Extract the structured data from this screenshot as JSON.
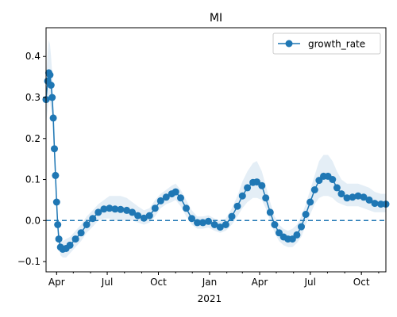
{
  "chart_data": {
    "type": "line",
    "title": "MI",
    "xlabel": "",
    "ylabel": "",
    "x_start": "2020-03-13",
    "x_end": "2021-11-14",
    "ylim": [
      -0.125,
      0.47
    ],
    "x_ticks": [
      {
        "date": "2020-04-01",
        "label": "Apr",
        "sub": ""
      },
      {
        "date": "2020-07-01",
        "label": "Jul",
        "sub": ""
      },
      {
        "date": "2020-10-01",
        "label": "Oct",
        "sub": ""
      },
      {
        "date": "2021-01-01",
        "label": "Jan",
        "sub": "2021"
      },
      {
        "date": "2021-04-01",
        "label": "Apr",
        "sub": ""
      },
      {
        "date": "2021-07-01",
        "label": "Jul",
        "sub": ""
      },
      {
        "date": "2021-10-01",
        "label": "Oct",
        "sub": ""
      }
    ],
    "y_ticks": [
      -0.1,
      0.0,
      0.1,
      0.2,
      0.3,
      0.4
    ],
    "y_tick_labels": [
      "−0.1",
      "0.0",
      "0.1",
      "0.2",
      "0.3",
      "0.4"
    ],
    "reference_line": {
      "y": 0.0,
      "style": "dashed"
    },
    "legend": {
      "position": "top-right"
    },
    "series": [
      {
        "name": "growth_rate",
        "color": "#1f77b4",
        "band_color": "#1f77b4",
        "marker": "circle",
        "points": [
          [
            "2020-03-13",
            0.295,
            0.24,
            0.35
          ],
          [
            "2020-03-16",
            0.34,
            0.27,
            0.41
          ],
          [
            "2020-03-18",
            0.36,
            0.29,
            0.44
          ],
          [
            "2020-03-20",
            0.355,
            0.29,
            0.43
          ],
          [
            "2020-03-22",
            0.33,
            0.27,
            0.4
          ],
          [
            "2020-03-24",
            0.3,
            0.25,
            0.36
          ],
          [
            "2020-03-26",
            0.25,
            0.2,
            0.3
          ],
          [
            "2020-03-28",
            0.175,
            0.14,
            0.22
          ],
          [
            "2020-03-30",
            0.11,
            0.08,
            0.14
          ],
          [
            "2020-04-01",
            0.045,
            0.02,
            0.07
          ],
          [
            "2020-04-03",
            -0.01,
            -0.03,
            0.01
          ],
          [
            "2020-04-05",
            -0.045,
            -0.065,
            -0.025
          ],
          [
            "2020-04-08",
            -0.065,
            -0.085,
            -0.045
          ],
          [
            "2020-04-12",
            -0.07,
            -0.09,
            -0.05
          ],
          [
            "2020-04-18",
            -0.068,
            -0.09,
            -0.045
          ],
          [
            "2020-04-25",
            -0.06,
            -0.08,
            -0.04
          ],
          [
            "2020-05-05",
            -0.045,
            -0.065,
            -0.025
          ],
          [
            "2020-05-15",
            -0.03,
            -0.05,
            -0.01
          ],
          [
            "2020-05-25",
            -0.01,
            -0.03,
            0.01
          ],
          [
            "2020-06-05",
            0.005,
            -0.015,
            0.025
          ],
          [
            "2020-06-15",
            0.02,
            0.0,
            0.04
          ],
          [
            "2020-06-25",
            0.028,
            0.005,
            0.05
          ],
          [
            "2020-07-05",
            0.03,
            0.005,
            0.06
          ],
          [
            "2020-07-15",
            0.028,
            0.0,
            0.06
          ],
          [
            "2020-07-25",
            0.027,
            0.0,
            0.06
          ],
          [
            "2020-08-05",
            0.025,
            0.0,
            0.055
          ],
          [
            "2020-08-15",
            0.02,
            0.0,
            0.045
          ],
          [
            "2020-08-25",
            0.012,
            -0.005,
            0.035
          ],
          [
            "2020-09-05",
            0.006,
            -0.01,
            0.025
          ],
          [
            "2020-09-15",
            0.012,
            -0.005,
            0.03
          ],
          [
            "2020-09-25",
            0.03,
            0.01,
            0.05
          ],
          [
            "2020-10-05",
            0.048,
            0.03,
            0.065
          ],
          [
            "2020-10-15",
            0.057,
            0.04,
            0.075
          ],
          [
            "2020-10-25",
            0.065,
            0.045,
            0.085
          ],
          [
            "2020-11-01",
            0.07,
            0.05,
            0.09
          ],
          [
            "2020-11-10",
            0.055,
            0.035,
            0.075
          ],
          [
            "2020-11-20",
            0.03,
            0.01,
            0.05
          ],
          [
            "2020-11-30",
            0.005,
            -0.01,
            0.025
          ],
          [
            "2020-12-10",
            -0.005,
            -0.02,
            0.01
          ],
          [
            "2020-12-20",
            -0.005,
            -0.02,
            0.01
          ],
          [
            "2020-12-30",
            -0.002,
            -0.017,
            0.013
          ],
          [
            "2021-01-10",
            -0.01,
            -0.025,
            0.005
          ],
          [
            "2021-01-20",
            -0.016,
            -0.03,
            0.0
          ],
          [
            "2021-01-30",
            -0.01,
            -0.025,
            0.005
          ],
          [
            "2021-02-10",
            0.01,
            -0.01,
            0.03
          ],
          [
            "2021-02-20",
            0.035,
            0.01,
            0.06
          ],
          [
            "2021-03-01",
            0.06,
            0.03,
            0.095
          ],
          [
            "2021-03-10",
            0.08,
            0.045,
            0.12
          ],
          [
            "2021-03-20",
            0.093,
            0.055,
            0.14
          ],
          [
            "2021-03-27",
            0.094,
            0.055,
            0.145
          ],
          [
            "2021-04-05",
            0.085,
            0.05,
            0.12
          ],
          [
            "2021-04-12",
            0.055,
            0.03,
            0.085
          ],
          [
            "2021-04-20",
            0.02,
            0.0,
            0.045
          ],
          [
            "2021-04-28",
            -0.01,
            -0.03,
            0.01
          ],
          [
            "2021-05-06",
            -0.03,
            -0.05,
            -0.01
          ],
          [
            "2021-05-14",
            -0.04,
            -0.06,
            -0.02
          ],
          [
            "2021-05-22",
            -0.045,
            -0.065,
            -0.025
          ],
          [
            "2021-05-30",
            -0.045,
            -0.065,
            -0.02
          ],
          [
            "2021-06-07",
            -0.035,
            -0.055,
            -0.01
          ],
          [
            "2021-06-15",
            -0.015,
            -0.04,
            0.01
          ],
          [
            "2021-06-23",
            0.015,
            -0.01,
            0.04
          ],
          [
            "2021-07-01",
            0.045,
            0.015,
            0.075
          ],
          [
            "2021-07-09",
            0.075,
            0.04,
            0.11
          ],
          [
            "2021-07-17",
            0.098,
            0.055,
            0.145
          ],
          [
            "2021-07-25",
            0.108,
            0.06,
            0.16
          ],
          [
            "2021-08-02",
            0.108,
            0.06,
            0.16
          ],
          [
            "2021-08-10",
            0.1,
            0.055,
            0.145
          ],
          [
            "2021-08-18",
            0.08,
            0.045,
            0.12
          ],
          [
            "2021-08-26",
            0.065,
            0.04,
            0.1
          ],
          [
            "2021-09-05",
            0.055,
            0.035,
            0.09
          ],
          [
            "2021-09-15",
            0.057,
            0.035,
            0.09
          ],
          [
            "2021-09-25",
            0.06,
            0.035,
            0.09
          ],
          [
            "2021-10-05",
            0.057,
            0.03,
            0.085
          ],
          [
            "2021-10-15",
            0.05,
            0.025,
            0.08
          ],
          [
            "2021-10-25",
            0.042,
            0.02,
            0.07
          ],
          [
            "2021-11-05",
            0.04,
            0.02,
            0.065
          ],
          [
            "2021-11-14",
            0.04,
            0.02,
            0.065
          ]
        ]
      }
    ]
  }
}
